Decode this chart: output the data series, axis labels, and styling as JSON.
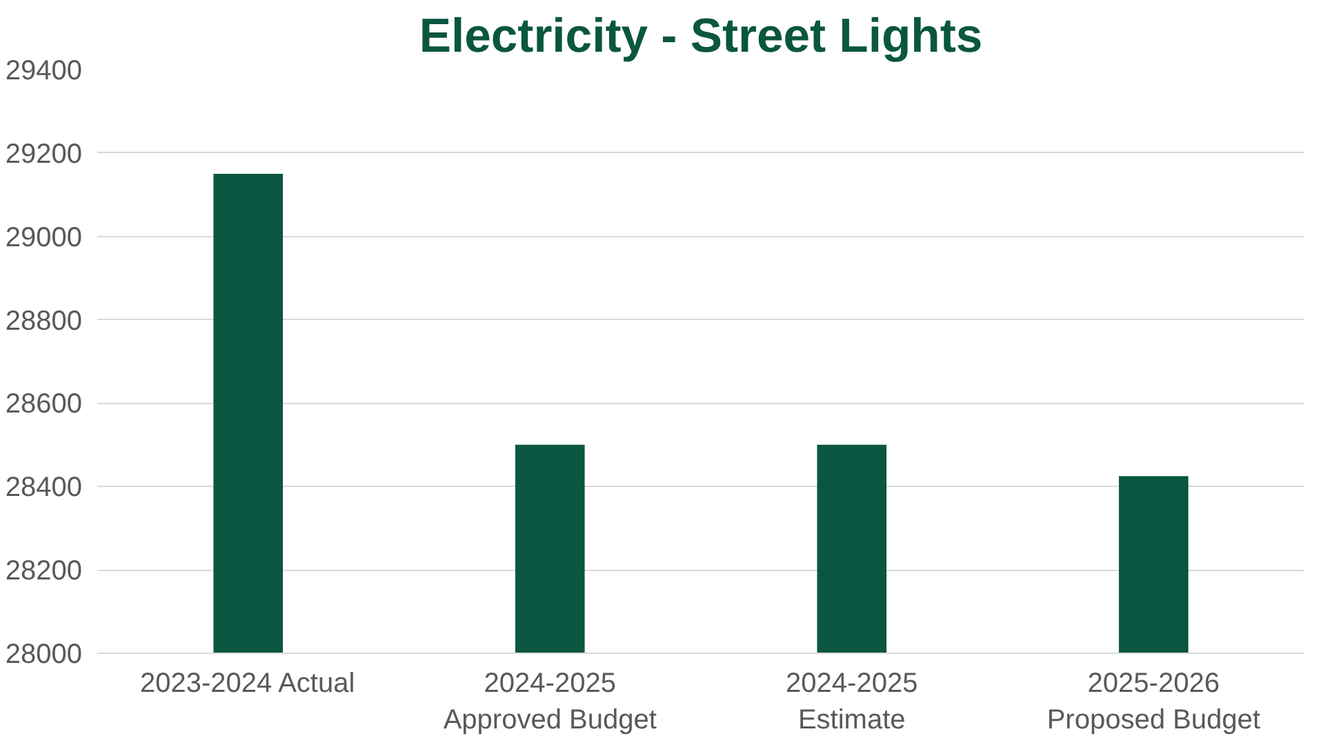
{
  "chart_data": {
    "type": "bar",
    "title": "Electricity - Street Lights",
    "categories": [
      "2023-2024 Actual",
      "2024-2025\nApproved Budget",
      "2024-2025\nEstimate",
      "2025-2026\nProposed Budget"
    ],
    "values": [
      29150,
      28500,
      28500,
      28425
    ],
    "color": "#0a5640",
    "ylim": [
      28000,
      29400
    ],
    "yticks": [
      28000,
      28200,
      28400,
      28600,
      28800,
      29000,
      29200,
      29400
    ],
    "grid": "y"
  }
}
